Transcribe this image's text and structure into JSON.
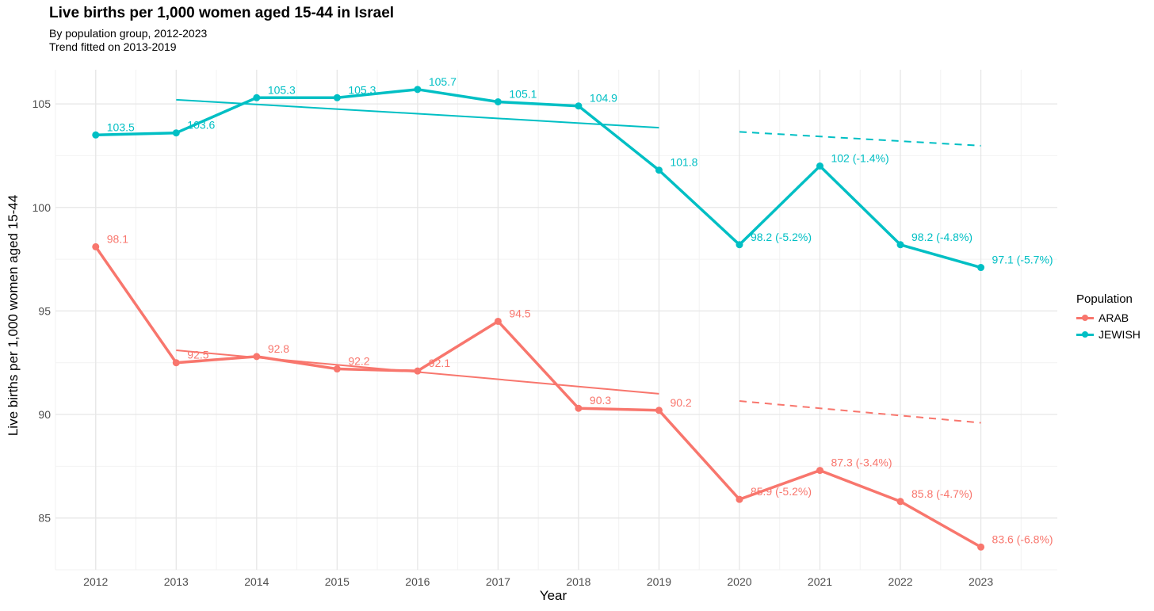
{
  "chart_data": {
    "type": "line",
    "title": "Live births per 1,000 women aged 15-44 in Israel",
    "subtitle_line1": "By population group, 2012-2023",
    "subtitle_line2": "Trend fitted on 2013-2019",
    "xlabel": "Year",
    "ylabel": "Live births per 1,000 women aged 15-44",
    "x": [
      2012,
      2013,
      2014,
      2015,
      2016,
      2017,
      2018,
      2019,
      2020,
      2021,
      2022,
      2023
    ],
    "xlim": [
      2011.5,
      2023.95
    ],
    "ylim": [
      82.5,
      106.65
    ],
    "yticks": [
      85,
      90,
      95,
      100,
      105
    ],
    "grid": true,
    "legend_title": "Population",
    "legend_position": "right",
    "series": [
      {
        "name": "ARAB",
        "color": "#F8766D",
        "values": [
          98.1,
          92.5,
          92.8,
          92.2,
          92.1,
          94.5,
          90.3,
          90.2,
          85.9,
          87.3,
          85.8,
          83.6
        ],
        "labels": [
          "98.1",
          "92.5",
          "92.8",
          "92.2",
          "92.1",
          "94.5",
          "90.3",
          "90.2",
          "85.9 (-5.2%)",
          "87.3 (-3.4%)",
          "85.8 (-4.7%)",
          "83.6 (-6.8%)"
        ],
        "trend_fit": {
          "x": [
            2013,
            2019
          ],
          "y": [
            93.1,
            91.0
          ]
        },
        "trend_projection": {
          "x": [
            2020,
            2023
          ],
          "y": [
            90.65,
            89.6
          ]
        }
      },
      {
        "name": "JEWISH",
        "color": "#00BFC4",
        "values": [
          103.5,
          103.6,
          105.3,
          105.3,
          105.7,
          105.1,
          104.9,
          101.8,
          98.2,
          102.0,
          98.2,
          97.1
        ],
        "labels": [
          "103.5",
          "103.6",
          "105.3",
          "105.3",
          "105.7",
          "105.1",
          "104.9",
          "101.8",
          "98.2 (-5.2%)",
          "102 (-1.4%)",
          "98.2 (-4.8%)",
          "97.1 (-5.7%)"
        ],
        "trend_fit": {
          "x": [
            2013,
            2019
          ],
          "y": [
            105.2,
            103.85
          ]
        },
        "trend_projection": {
          "x": [
            2020,
            2023
          ],
          "y": [
            103.65,
            102.98
          ]
        }
      }
    ]
  }
}
